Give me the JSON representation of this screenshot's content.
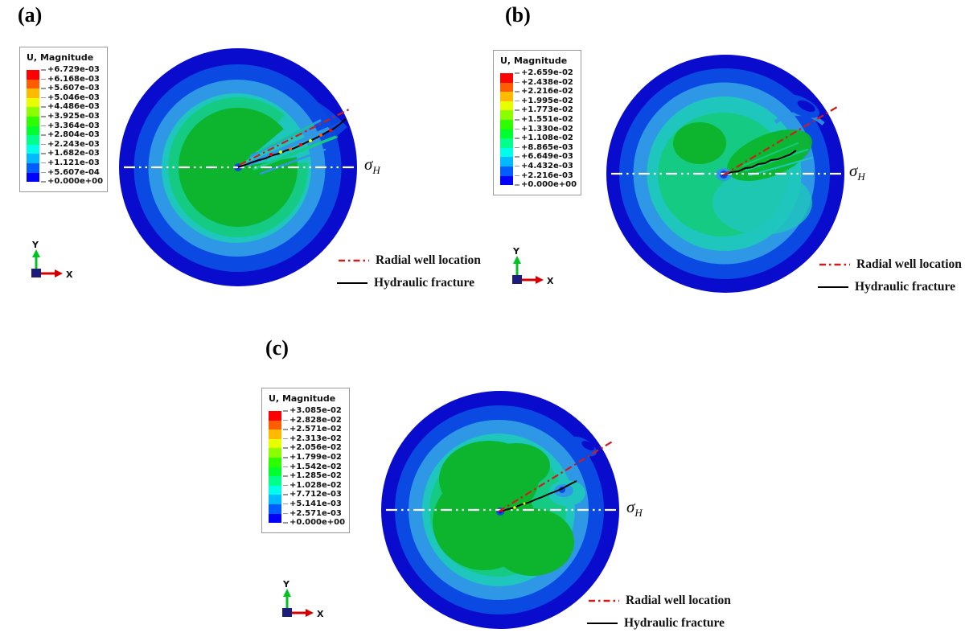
{
  "figure": {
    "colors": {
      "spectrum": [
        "#ff0000",
        "#ff5d00",
        "#ffba00",
        "#e8ff00",
        "#8bff00",
        "#2eff00",
        "#00ff2e",
        "#00ff8b",
        "#00ffe8",
        "#00baff",
        "#005dff",
        "#0000ff"
      ],
      "rings": [
        "#0a0ccd",
        "#0a49e2",
        "#2e97e6",
        "#1fc6bd",
        "#15cb83",
        "#0cb52d"
      ],
      "radial_well": "#cf1d1d",
      "hydraulic_fracture": "#000000",
      "stress_centerline": "#ffffff",
      "axis_x": "#d40000",
      "axis_y": "#00c321",
      "axis_origin": "#1c1c7a"
    },
    "panels": [
      {
        "label": "(a)",
        "legend_title": "U, Magnitude",
        "legend_values": [
          "+6.729e-03",
          "+6.168e-03",
          "+5.607e-03",
          "+5.046e-03",
          "+4.486e-03",
          "+3.925e-03",
          "+3.364e-03",
          "+2.804e-03",
          "+2.243e-03",
          "+1.682e-03",
          "+1.121e-03",
          "+5.607e-04",
          "+0.000e+00"
        ],
        "sigma": "σ",
        "sigma_sub": "H",
        "radial_label": "Radial well location",
        "fracture_label": "Hydraulic fracture",
        "axis_x": "X",
        "axis_y": "Y"
      },
      {
        "label": "(b)",
        "legend_title": "U, Magnitude",
        "legend_values": [
          "+2.659e-02",
          "+2.438e-02",
          "+2.216e-02",
          "+1.995e-02",
          "+1.773e-02",
          "+1.551e-02",
          "+1.330e-02",
          "+1.108e-02",
          "+8.865e-03",
          "+6.649e-03",
          "+4.432e-03",
          "+2.216e-03",
          "+0.000e+00"
        ],
        "sigma": "σ",
        "sigma_sub": "H",
        "radial_label": "Radial well location",
        "fracture_label": "Hydraulic fracture",
        "axis_x": "X",
        "axis_y": "Y"
      },
      {
        "label": "(c)",
        "legend_title": "U, Magnitude",
        "legend_values": [
          "+3.085e-02",
          "+2.828e-02",
          "+2.571e-02",
          "+2.313e-02",
          "+2.056e-02",
          "+1.799e-02",
          "+1.542e-02",
          "+1.285e-02",
          "+1.028e-02",
          "+7.712e-03",
          "+5.141e-03",
          "+2.571e-03",
          "+0.000e+00"
        ],
        "sigma": "σ",
        "sigma_sub": "H",
        "radial_label": "Radial well location",
        "fracture_label": "Hydraulic fracture",
        "axis_x": "X",
        "axis_y": "Y"
      }
    ]
  },
  "chart_data": [
    {
      "type": "heatmap",
      "panel": "(a)",
      "title": "U, Magnitude",
      "field": "displacement magnitude contour on circular domain",
      "contour_levels": [
        0.0,
        0.0005607,
        0.001121,
        0.001682,
        0.002243,
        0.002804,
        0.003364,
        0.003925,
        0.004486,
        0.005046,
        0.005607,
        0.006168,
        0.006729
      ],
      "min": 0.0,
      "max": 0.006729,
      "colormap": "rainbow blue(low) to red(high)",
      "legend_position": "top-left box",
      "annotations": [
        "σH horizontal line through center",
        "Radial well location (red dash-dot)",
        "Hydraulic fracture (black solid)"
      ]
    },
    {
      "type": "heatmap",
      "panel": "(b)",
      "title": "U, Magnitude",
      "field": "displacement magnitude contour on circular domain",
      "contour_levels": [
        0.0,
        0.002216,
        0.004432,
        0.006649,
        0.008865,
        0.01108,
        0.0133,
        0.01551,
        0.01773,
        0.01995,
        0.02216,
        0.02438,
        0.02659
      ],
      "min": 0.0,
      "max": 0.02659,
      "colormap": "rainbow blue(low) to red(high)",
      "legend_position": "top-left box",
      "annotations": [
        "σH horizontal line through center",
        "Radial well location (red dash-dot)",
        "Hydraulic fracture (black solid)"
      ]
    },
    {
      "type": "heatmap",
      "panel": "(c)",
      "title": "U, Magnitude",
      "field": "displacement magnitude contour on circular domain",
      "contour_levels": [
        0.0,
        0.002571,
        0.005141,
        0.007712,
        0.01028,
        0.01285,
        0.01542,
        0.01799,
        0.02056,
        0.02313,
        0.02571,
        0.02828,
        0.03085
      ],
      "min": 0.0,
      "max": 0.03085,
      "colormap": "rainbow blue(low) to red(high)",
      "legend_position": "top-left box",
      "annotations": [
        "σH horizontal line through center",
        "Radial well location (red dash-dot)",
        "Hydraulic fracture (black solid)"
      ]
    }
  ]
}
